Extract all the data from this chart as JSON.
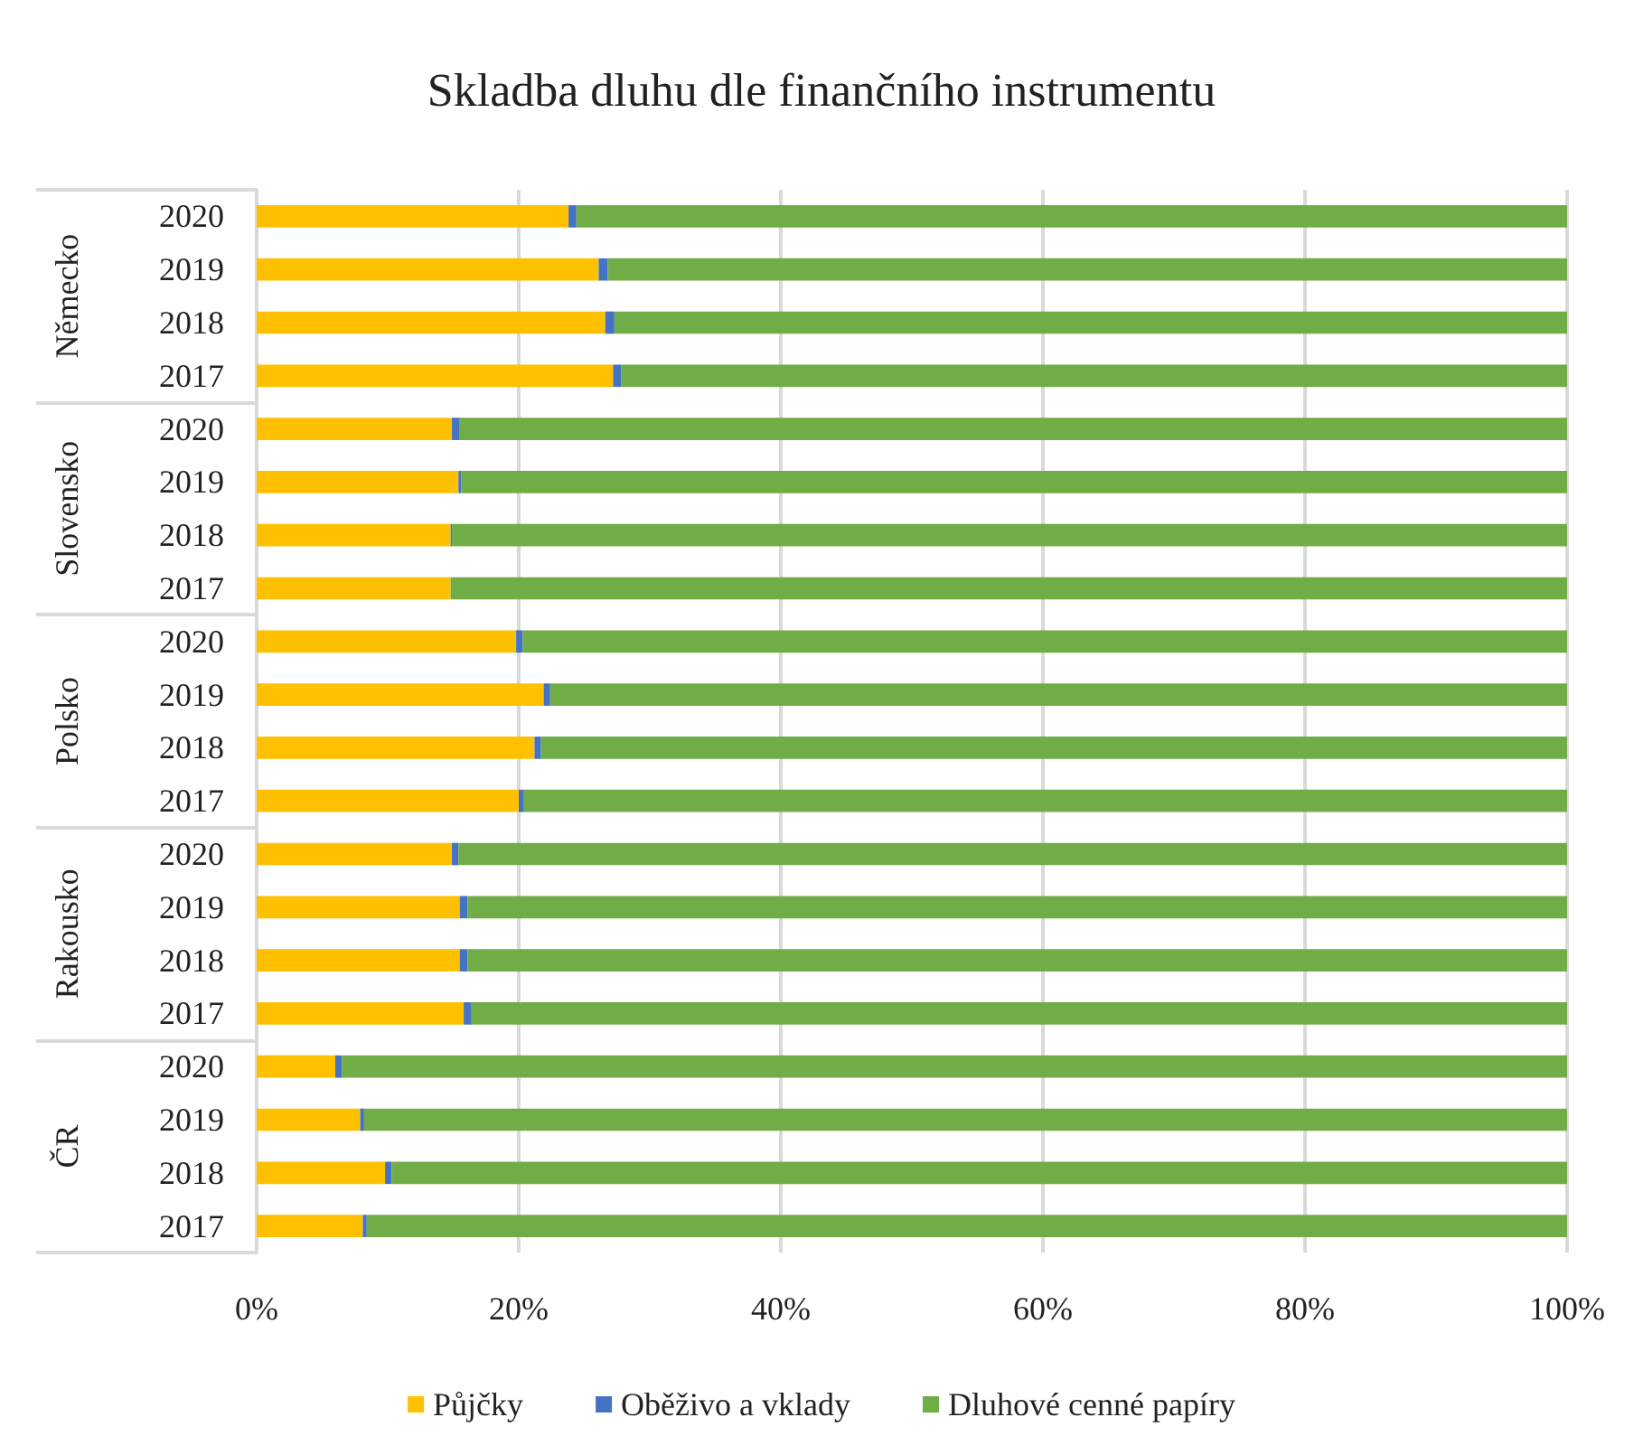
{
  "chart_data": {
    "type": "bar",
    "orientation": "horizontal",
    "stacked": true,
    "title": "Skladba dluhu dle finančního instrumentu",
    "categories": [
      "2020",
      "2019",
      "2018",
      "2017",
      "2020",
      "2019",
      "2018",
      "2017",
      "2020",
      "2019",
      "2018",
      "2017",
      "2020",
      "2019",
      "2018",
      "2017",
      "2020",
      "2019",
      "2018",
      "2017"
    ],
    "annotations": [
      "Německo",
      "Slovensko",
      "Polsko",
      "Rakousko",
      "ČR"
    ],
    "series": [
      {
        "name": "Půjčky",
        "color": "#ffc000",
        "values": [
          23.8,
          26.1,
          26.6,
          27.2,
          14.9,
          15.4,
          14.8,
          14.8,
          19.8,
          21.9,
          21.2,
          20.0,
          14.9,
          15.5,
          15.5,
          15.8,
          6.0,
          7.9,
          9.8,
          8.1
        ]
      },
      {
        "name": "Oběživo a vklady",
        "color": "#4472c4",
        "values": [
          0.6,
          0.7,
          0.7,
          0.6,
          0.6,
          0.2,
          0.1,
          0,
          0.5,
          0.5,
          0.5,
          0.4,
          0.5,
          0.6,
          0.6,
          0.6,
          0.5,
          0.3,
          0.5,
          0.3
        ]
      },
      {
        "name": "Dluhové cenné papíry",
        "color": "#70ad47",
        "values": [
          75.6,
          73.2,
          72.7,
          72.2,
          84.5,
          84.4,
          85.1,
          85.2,
          79.7,
          77.6,
          78.3,
          79.6,
          84.6,
          83.9,
          83.9,
          83.6,
          93.5,
          91.8,
          89.7,
          91.6
        ]
      }
    ],
    "xlim": [
      0,
      100
    ],
    "xticks": [
      {
        "value": 0,
        "label": "0%"
      },
      {
        "value": 20,
        "label": "20%"
      },
      {
        "value": 40,
        "label": "40%"
      },
      {
        "value": 60,
        "label": "60%"
      },
      {
        "value": 80,
        "label": "80%"
      },
      {
        "value": 100,
        "label": "100%"
      }
    ],
    "grid": "x",
    "legend": "bottom"
  }
}
